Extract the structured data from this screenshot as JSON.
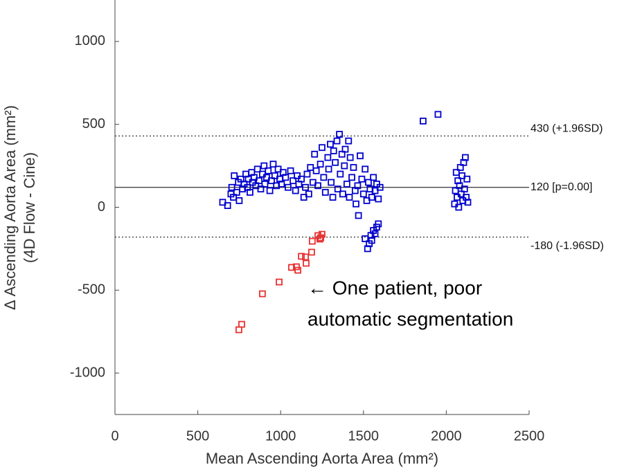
{
  "chart_data": {
    "type": "scatter",
    "xlabel": "Mean Ascending Aorta Area (mm²)",
    "ylabel": [
      "Δ Ascending Aorta Area (mm²)",
      "(4D Flow - Cine)"
    ],
    "xlim": [
      0,
      2500
    ],
    "ylim": [
      -1250,
      1250
    ],
    "xticks": [
      0,
      500,
      1000,
      1500,
      2000,
      2500
    ],
    "yticks": [
      -1000,
      -500,
      0,
      500,
      1000
    ],
    "grid": false,
    "ref_lines": [
      {
        "value": 430,
        "label": "430 (+1.96SD)",
        "style": "dotted"
      },
      {
        "value": 120,
        "label": "120 [p=0.00]",
        "style": "solid"
      },
      {
        "value": -180,
        "label": "-180 (-1.96SD)",
        "style": "dotted"
      }
    ],
    "annotation": [
      "← One patient, poor",
      "automatic segmentation"
    ],
    "series": [
      {
        "color": "#0000cc",
        "x": [
          650,
          680,
          700,
          705,
          715,
          720,
          735,
          745,
          750,
          760,
          770,
          780,
          790,
          800,
          805,
          815,
          825,
          830,
          840,
          850,
          860,
          870,
          880,
          890,
          900,
          905,
          915,
          925,
          935,
          945,
          955,
          965,
          975,
          985,
          995,
          1005,
          1015,
          1030,
          1045,
          1060,
          1075,
          1090,
          1100,
          1110,
          1125,
          1140,
          1150,
          1160,
          1170,
          1180,
          1195,
          1205,
          1215,
          1225,
          1240,
          1250,
          1260,
          1270,
          1285,
          1290,
          1300,
          1305,
          1315,
          1320,
          1330,
          1340,
          1345,
          1355,
          1360,
          1370,
          1375,
          1385,
          1390,
          1400,
          1410,
          1415,
          1420,
          1430,
          1440,
          1450,
          1455,
          1465,
          1470,
          1480,
          1490,
          1500,
          1510,
          1520,
          1530,
          1540,
          1550,
          1560,
          1570,
          1580,
          1590,
          1600,
          1510,
          1525,
          1535,
          1545,
          1550,
          1560,
          1570,
          1580,
          1590,
          1860,
          1950,
          2050,
          2055,
          2060,
          2065,
          2070,
          2075,
          2080,
          2085,
          2090,
          2095,
          2100,
          2105,
          2110,
          2115,
          2120,
          2125,
          2130
        ],
        "y": [
          30,
          10,
          80,
          120,
          60,
          190,
          90,
          150,
          40,
          170,
          110,
          140,
          200,
          120,
          170,
          90,
          210,
          150,
          180,
          130,
          230,
          160,
          110,
          200,
          250,
          140,
          180,
          220,
          100,
          160,
          260,
          190,
          130,
          230,
          170,
          140,
          210,
          180,
          120,
          220,
          160,
          100,
          190,
          140,
          170,
          60,
          120,
          200,
          80,
          240,
          150,
          320,
          220,
          130,
          260,
          360,
          180,
          90,
          300,
          230,
          380,
          150,
          60,
          340,
          270,
          400,
          110,
          440,
          200,
          320,
          80,
          250,
          350,
          140,
          400,
          60,
          300,
          180,
          240,
          100,
          20,
          130,
          -50,
          310,
          170,
          80,
          230,
          40,
          150,
          110,
          60,
          180,
          100,
          140,
          50,
          120,
          -190,
          -250,
          -220,
          -170,
          -200,
          -140,
          -160,
          -120,
          -100,
          520,
          560,
          20,
          100,
          210,
          60,
          160,
          0,
          130,
          240,
          80,
          190,
          40,
          270,
          110,
          300,
          60,
          170,
          30
        ]
      },
      {
        "color": "#e83030",
        "x": [
          748,
          765,
          890,
          991,
          1066,
          1095,
          1104,
          1125,
          1150,
          1154,
          1187,
          1191,
          1225,
          1237,
          1242,
          1250
        ],
        "y": [
          -739,
          -706,
          -522,
          -451,
          -363,
          -359,
          -380,
          -296,
          -300,
          -338,
          -271,
          -205,
          -171,
          -192,
          -184,
          -163
        ]
      }
    ]
  }
}
